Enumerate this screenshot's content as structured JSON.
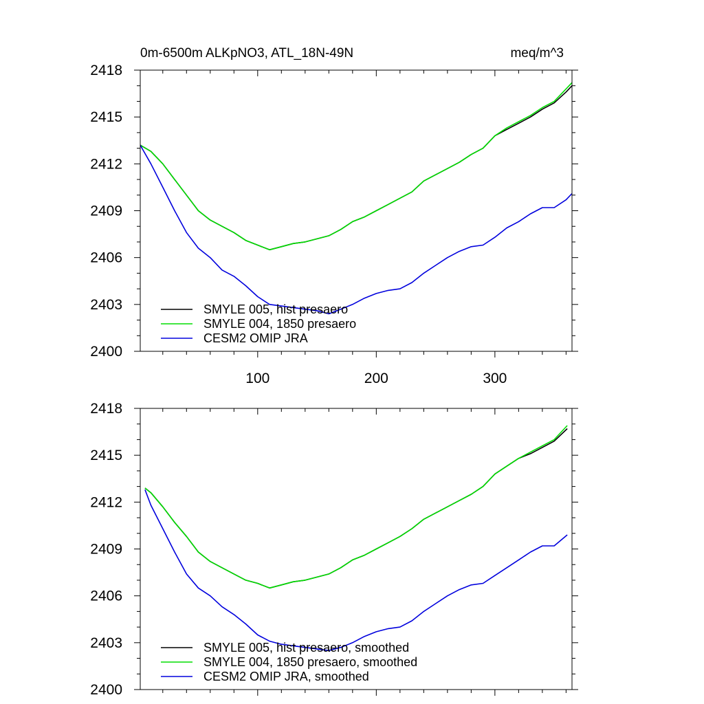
{
  "chart_data": [
    {
      "type": "line",
      "title_left": "0m-6500m ALKpNO3, ATL_18N-49N",
      "title_right": "meq/m^3",
      "xlim": [
        1,
        365
      ],
      "ylim": [
        2400,
        2418
      ],
      "x_ticks": [
        100,
        200,
        300
      ],
      "y_ticks": [
        2400,
        2403,
        2406,
        2409,
        2412,
        2415,
        2418
      ],
      "show_x_tick_labels": true,
      "legend_position": "bottom-left",
      "series": [
        {
          "name": "SMYLE 005, hist presaero",
          "color": "#000000",
          "x": [
            1,
            10,
            20,
            30,
            40,
            50,
            60,
            70,
            80,
            90,
            100,
            110,
            120,
            130,
            140,
            150,
            160,
            170,
            180,
            190,
            200,
            210,
            220,
            230,
            240,
            250,
            260,
            270,
            280,
            290,
            300,
            310,
            320,
            330,
            340,
            350,
            360,
            365
          ],
          "y": [
            2413.2,
            2412.8,
            2412.0,
            2411.0,
            2410.0,
            2409.0,
            2408.4,
            2408.0,
            2407.6,
            2407.1,
            2406.8,
            2406.5,
            2406.7,
            2406.9,
            2407.0,
            2407.2,
            2407.4,
            2407.8,
            2408.3,
            2408.6,
            2409.0,
            2409.4,
            2409.8,
            2410.2,
            2410.9,
            2411.3,
            2411.7,
            2412.1,
            2412.6,
            2413.0,
            2413.8,
            2414.2,
            2414.6,
            2415.0,
            2415.5,
            2415.9,
            2416.6,
            2417.0
          ]
        },
        {
          "name": "SMYLE 004, 1850 presaero",
          "color": "#00dd00",
          "x": [
            1,
            10,
            20,
            30,
            40,
            50,
            60,
            70,
            80,
            90,
            100,
            110,
            120,
            130,
            140,
            150,
            160,
            170,
            180,
            190,
            200,
            210,
            220,
            230,
            240,
            250,
            260,
            270,
            280,
            290,
            300,
            310,
            320,
            330,
            340,
            350,
            360,
            365
          ],
          "y": [
            2413.2,
            2412.8,
            2412.0,
            2411.0,
            2410.0,
            2409.0,
            2408.4,
            2408.0,
            2407.6,
            2407.1,
            2406.8,
            2406.5,
            2406.7,
            2406.9,
            2407.0,
            2407.2,
            2407.4,
            2407.8,
            2408.3,
            2408.6,
            2409.0,
            2409.4,
            2409.8,
            2410.2,
            2410.9,
            2411.3,
            2411.7,
            2412.1,
            2412.6,
            2413.0,
            2413.8,
            2414.3,
            2414.7,
            2415.1,
            2415.6,
            2416.0,
            2416.8,
            2417.2
          ]
        },
        {
          "name": "CESM2 OMIP JRA",
          "color": "#0000dd",
          "x": [
            1,
            10,
            20,
            30,
            40,
            50,
            60,
            70,
            80,
            90,
            100,
            110,
            120,
            130,
            140,
            150,
            160,
            170,
            180,
            190,
            200,
            210,
            220,
            230,
            240,
            250,
            260,
            270,
            280,
            290,
            300,
            310,
            320,
            330,
            340,
            350,
            360,
            365
          ],
          "y": [
            2413.2,
            2412.0,
            2410.5,
            2409.0,
            2407.6,
            2406.6,
            2406.0,
            2405.2,
            2404.8,
            2404.2,
            2403.5,
            2403.0,
            2402.9,
            2402.8,
            2402.7,
            2402.6,
            2402.4,
            2402.7,
            2403.0,
            2403.4,
            2403.7,
            2403.9,
            2404.0,
            2404.4,
            2405.0,
            2405.5,
            2406.0,
            2406.4,
            2406.7,
            2406.8,
            2407.3,
            2407.9,
            2408.3,
            2408.8,
            2409.2,
            2409.2,
            2409.7,
            2410.1
          ]
        }
      ]
    },
    {
      "type": "line",
      "xlim": [
        1,
        365
      ],
      "ylim": [
        2400,
        2418
      ],
      "x_ticks": [
        100,
        200,
        300
      ],
      "y_ticks": [
        2400,
        2403,
        2406,
        2409,
        2412,
        2415,
        2418
      ],
      "show_x_tick_labels": false,
      "legend_position": "bottom-left",
      "series": [
        {
          "name": "SMYLE 005, hist presaero, smoothed",
          "color": "#000000",
          "x": [
            5,
            10,
            20,
            30,
            40,
            50,
            60,
            70,
            80,
            90,
            100,
            110,
            120,
            130,
            140,
            150,
            160,
            170,
            180,
            190,
            200,
            210,
            220,
            230,
            240,
            250,
            260,
            270,
            280,
            290,
            300,
            310,
            320,
            330,
            340,
            350,
            361
          ],
          "y": [
            2412.9,
            2412.6,
            2411.7,
            2410.7,
            2409.8,
            2408.8,
            2408.2,
            2407.8,
            2407.4,
            2407.0,
            2406.8,
            2406.5,
            2406.7,
            2406.9,
            2407.0,
            2407.2,
            2407.4,
            2407.8,
            2408.3,
            2408.6,
            2409.0,
            2409.4,
            2409.8,
            2410.3,
            2410.9,
            2411.3,
            2411.7,
            2412.1,
            2412.5,
            2413.0,
            2413.8,
            2414.3,
            2414.8,
            2415.1,
            2415.5,
            2415.9,
            2416.7
          ]
        },
        {
          "name": "SMYLE 004, 1850 presaero, smoothed",
          "color": "#00dd00",
          "x": [
            5,
            10,
            20,
            30,
            40,
            50,
            60,
            70,
            80,
            90,
            100,
            110,
            120,
            130,
            140,
            150,
            160,
            170,
            180,
            190,
            200,
            210,
            220,
            230,
            240,
            250,
            260,
            270,
            280,
            290,
            300,
            310,
            320,
            330,
            340,
            350,
            361
          ],
          "y": [
            2412.9,
            2412.6,
            2411.7,
            2410.7,
            2409.8,
            2408.8,
            2408.2,
            2407.8,
            2407.4,
            2407.0,
            2406.8,
            2406.5,
            2406.7,
            2406.9,
            2407.0,
            2407.2,
            2407.4,
            2407.8,
            2408.3,
            2408.6,
            2409.0,
            2409.4,
            2409.8,
            2410.3,
            2410.9,
            2411.3,
            2411.7,
            2412.1,
            2412.5,
            2413.0,
            2413.8,
            2414.3,
            2414.8,
            2415.2,
            2415.6,
            2416.0,
            2416.9
          ]
        },
        {
          "name": "CESM2 OMIP JRA, smoothed",
          "color": "#0000dd",
          "x": [
            5,
            10,
            20,
            30,
            40,
            50,
            60,
            70,
            80,
            90,
            100,
            110,
            120,
            130,
            140,
            150,
            160,
            170,
            180,
            190,
            200,
            210,
            220,
            230,
            240,
            250,
            260,
            270,
            280,
            290,
            300,
            310,
            320,
            330,
            340,
            350,
            361
          ],
          "y": [
            2412.8,
            2411.8,
            2410.3,
            2408.8,
            2407.4,
            2406.5,
            2406.0,
            2405.3,
            2404.8,
            2404.2,
            2403.5,
            2403.1,
            2402.9,
            2402.8,
            2402.7,
            2402.6,
            2402.5,
            2402.7,
            2403.0,
            2403.4,
            2403.7,
            2403.9,
            2404.0,
            2404.4,
            2405.0,
            2405.5,
            2406.0,
            2406.4,
            2406.7,
            2406.8,
            2407.3,
            2407.8,
            2408.3,
            2408.8,
            2409.2,
            2409.2,
            2409.9
          ]
        }
      ]
    }
  ]
}
